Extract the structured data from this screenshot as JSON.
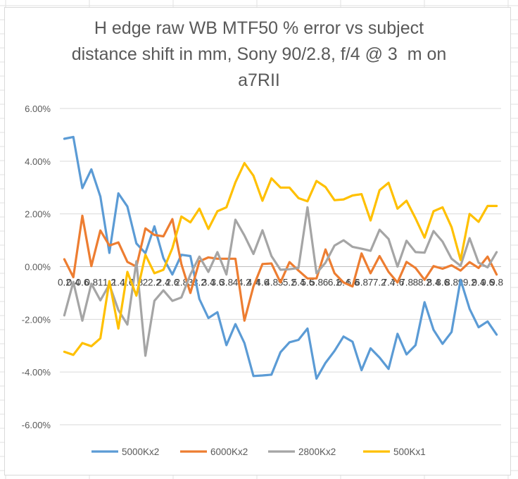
{
  "chart_data": {
    "type": "line",
    "title_lines": [
      "H edge raw WB MTF50 % error vs subject",
      "distance shift in mm, Sony 90/2.8, f/4 @ 3  m on",
      "a7RII"
    ],
    "ylim": [
      -0.06,
      0.06
    ],
    "y_ticks": [
      {
        "value": 0.06,
        "label": "6.00%"
      },
      {
        "value": 0.04,
        "label": "4.00%"
      },
      {
        "value": 0.02,
        "label": "2.00%"
      },
      {
        "value": 0.0,
        "label": "0.00%"
      },
      {
        "value": -0.02,
        "label": "-2.00%"
      },
      {
        "value": -0.04,
        "label": "-4.00%"
      },
      {
        "value": -0.06,
        "label": "-6.00%"
      }
    ],
    "x": [
      0.2,
      0.4,
      0.6,
      0.8,
      1,
      1.2,
      1.4,
      1.6,
      1.8,
      2,
      2.2,
      2.4,
      2.6,
      2.8,
      3,
      3.2,
      3.4,
      3.6,
      3.8,
      4,
      4.2,
      4.4,
      4.6,
      4.8,
      5,
      5.2,
      5.4,
      5.6,
      5.8,
      6,
      6.2,
      6.4,
      6.6,
      6.8,
      7,
      7.2,
      7.4,
      7.6,
      7.8,
      8,
      8.2,
      8.4,
      8.6,
      8.8,
      9,
      9.2,
      9.4,
      9.6,
      9.8
    ],
    "x_tick_labels": [
      "0.2",
      "0.4",
      "0.6",
      "0.8",
      "1",
      "1.2",
      "1.4",
      "1.6",
      "1.8",
      "2",
      "2.2",
      "2.4",
      "2.6",
      "2.8",
      "3",
      "3.2",
      "3.4",
      "3.6",
      "3.8",
      "4",
      "4.2",
      "4.4",
      "4.6",
      "4.8",
      "5",
      "5.2",
      "5.4",
      "5.6",
      "5.8",
      "6",
      "6.2",
      "6.4",
      "6.6",
      "6.8",
      "7",
      "7.2",
      "7.4",
      "7.6",
      "7.8",
      "8",
      "8.2",
      "8.4",
      "8.6",
      "8.8",
      "9",
      "9.2",
      "9.4",
      "9.6",
      "9.8"
    ],
    "series": [
      {
        "name": "5000Kx2",
        "color": "#5b9bd5",
        "values": [
          0.0485,
          0.0492,
          0.0298,
          0.0369,
          0.0266,
          0.0052,
          0.0278,
          0.0228,
          0.0088,
          0.0051,
          0.0153,
          0.0032,
          -0.003,
          0.0045,
          0.004,
          -0.0123,
          -0.0195,
          -0.0173,
          -0.0298,
          -0.0218,
          -0.029,
          -0.0415,
          -0.0413,
          -0.041,
          -0.0325,
          -0.0287,
          -0.0278,
          -0.0235,
          -0.0425,
          -0.0365,
          -0.032,
          -0.0265,
          -0.0285,
          -0.0393,
          -0.031,
          -0.0345,
          -0.0388,
          -0.0255,
          -0.0333,
          -0.0298,
          -0.0135,
          -0.024,
          -0.0293,
          -0.0248,
          -0.005,
          -0.016,
          -0.023,
          -0.0208,
          -0.0258
        ]
      },
      {
        "name": "6000Kx2",
        "color": "#ed7d31",
        "values": [
          0.0028,
          -0.004,
          0.0193,
          0.0002,
          0.0137,
          0.008,
          0.0092,
          0.0018,
          0.0,
          0.0145,
          0.012,
          0.0115,
          0.018,
          0.001,
          -0.01,
          0.002,
          0.0035,
          0.003,
          0.003,
          0.003,
          -0.0205,
          -0.0075,
          0.001,
          0.0012,
          -0.006,
          0.0017,
          -0.0015,
          -0.0045,
          -0.0045,
          0.0065,
          -0.0025,
          -0.006,
          -0.0075,
          0.005,
          -0.0025,
          0.004,
          -0.002,
          -0.006,
          0.0018,
          -0.0005,
          -0.005,
          0.0002,
          -0.0008,
          0.0005,
          -0.0015,
          0.0017,
          -0.0005,
          0.0038,
          -0.003
        ]
      },
      {
        "name": "2800Kx2",
        "color": "#a5a5a5",
        "values": [
          -0.0185,
          -0.0058,
          -0.0205,
          -0.0065,
          -0.0128,
          -0.0068,
          -0.0165,
          -0.022,
          0.002,
          -0.0338,
          -0.013,
          -0.009,
          -0.013,
          -0.0117,
          -0.003,
          0.0038,
          -0.002,
          0.0055,
          -0.003,
          0.0178,
          0.0118,
          0.0048,
          0.0138,
          0.004,
          -0.0012,
          -0.001,
          -0.0005,
          0.0225,
          -0.0025,
          0.0015,
          0.008,
          0.01,
          0.0075,
          0.0068,
          0.006,
          0.014,
          0.0105,
          0.0,
          0.0098,
          0.0055,
          0.0053,
          0.0135,
          0.0095,
          0.003,
          0.0003,
          0.0108,
          0.0015,
          -0.0003,
          0.0055
        ]
      },
      {
        "name": "500Kx1",
        "color": "#ffc000",
        "values": [
          -0.0323,
          -0.0335,
          -0.029,
          -0.0302,
          -0.0272,
          -0.0055,
          -0.0235,
          -0.002,
          -0.011,
          0.0045,
          -0.0025,
          -0.0012,
          0.007,
          0.019,
          0.0168,
          0.022,
          0.0143,
          0.021,
          0.0225,
          0.032,
          0.0393,
          0.0345,
          0.025,
          0.0335,
          0.03,
          0.03,
          0.026,
          0.0248,
          0.0325,
          0.0302,
          0.0252,
          0.0255,
          0.027,
          0.0275,
          0.0175,
          0.029,
          0.0318,
          0.022,
          0.025,
          0.0183,
          0.011,
          0.021,
          0.0225,
          0.015,
          0.0025,
          0.02,
          0.017,
          0.023,
          0.023
        ]
      }
    ],
    "legend_position": "bottom",
    "grid": true
  }
}
